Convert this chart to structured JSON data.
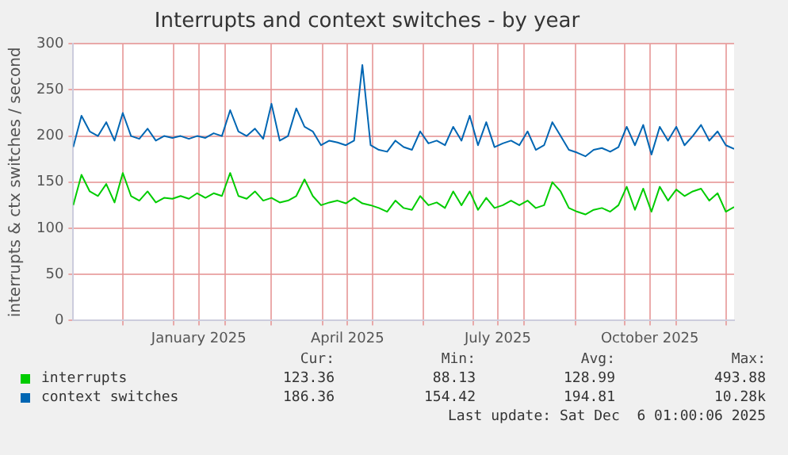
{
  "chart_data": {
    "type": "line",
    "title": "Interrupts and context switches - by year",
    "ylabel": "interrupts & ctx switches / second",
    "x": [
      "2024-11-01",
      "2024-11-06",
      "2024-11-11",
      "2024-11-16",
      "2024-11-21",
      "2024-11-26",
      "2024-12-01",
      "2024-12-06",
      "2024-12-11",
      "2024-12-16",
      "2024-12-21",
      "2024-12-26",
      "2024-12-31",
      "2025-01-05",
      "2025-01-10",
      "2025-01-15",
      "2025-01-20",
      "2025-01-25",
      "2025-01-30",
      "2025-02-04",
      "2025-02-09",
      "2025-02-14",
      "2025-02-19",
      "2025-02-24",
      "2025-03-01",
      "2025-03-06",
      "2025-03-11",
      "2025-03-16",
      "2025-03-21",
      "2025-03-26",
      "2025-03-31",
      "2025-04-05",
      "2025-04-10",
      "2025-04-15",
      "2025-04-20",
      "2025-04-25",
      "2025-04-30",
      "2025-05-05",
      "2025-05-10",
      "2025-05-15",
      "2025-05-20",
      "2025-05-25",
      "2025-05-30",
      "2025-06-04",
      "2025-06-09",
      "2025-06-14",
      "2025-06-19",
      "2025-06-24",
      "2025-06-29",
      "2025-07-04",
      "2025-07-09",
      "2025-07-14",
      "2025-07-19",
      "2025-07-24",
      "2025-07-29",
      "2025-08-03",
      "2025-08-08",
      "2025-08-13",
      "2025-08-18",
      "2025-08-23",
      "2025-08-28",
      "2025-09-02",
      "2025-09-07",
      "2025-09-12",
      "2025-09-17",
      "2025-09-22",
      "2025-09-27",
      "2025-10-02",
      "2025-10-07",
      "2025-10-12",
      "2025-10-17",
      "2025-10-22",
      "2025-10-27",
      "2025-11-01",
      "2025-11-06",
      "2025-11-11",
      "2025-11-16",
      "2025-11-21",
      "2025-11-26",
      "2025-12-01",
      "2025-12-06"
    ],
    "series": [
      {
        "name": "interrupts",
        "color": "#00cc00",
        "values": [
          125,
          158,
          140,
          135,
          148,
          128,
          160,
          135,
          130,
          140,
          128,
          133,
          132,
          135,
          132,
          138,
          133,
          138,
          135,
          160,
          135,
          132,
          140,
          130,
          133,
          128,
          130,
          135,
          153,
          135,
          125,
          128,
          130,
          127,
          133,
          127,
          125,
          122,
          118,
          130,
          122,
          120,
          135,
          125,
          128,
          122,
          140,
          125,
          140,
          120,
          133,
          122,
          125,
          130,
          125,
          130,
          122,
          125,
          150,
          140,
          122,
          118,
          115,
          120,
          122,
          118,
          125,
          145,
          120,
          143,
          118,
          145,
          130,
          142,
          135,
          140,
          143,
          130,
          138,
          118,
          123
        ]
      },
      {
        "name": "context switches",
        "color": "#0066b3",
        "values": [
          188,
          222,
          205,
          200,
          215,
          195,
          225,
          200,
          197,
          208,
          195,
          200,
          198,
          200,
          197,
          200,
          198,
          203,
          200,
          228,
          205,
          200,
          208,
          197,
          235,
          195,
          200,
          230,
          210,
          205,
          190,
          195,
          193,
          190,
          195,
          277,
          190,
          185,
          183,
          195,
          188,
          185,
          205,
          192,
          195,
          190,
          210,
          195,
          222,
          190,
          215,
          188,
          192,
          195,
          190,
          205,
          185,
          190,
          215,
          200,
          185,
          182,
          178,
          185,
          187,
          183,
          188,
          210,
          190,
          212,
          180,
          210,
          195,
          210,
          190,
          200,
          212,
          195,
          205,
          190,
          186
        ]
      }
    ],
    "xlim": [
      "2024-11-01",
      "2025-12-06"
    ],
    "xticks": [
      {
        "value": "2024-12-01",
        "label": null
      },
      {
        "value": "2025-01-01",
        "label": null
      },
      {
        "value": "2025-01-16",
        "label": "January 2025"
      },
      {
        "value": "2025-02-01",
        "label": null
      },
      {
        "value": "2025-03-01",
        "label": null
      },
      {
        "value": "2025-04-01",
        "label": null
      },
      {
        "value": "2025-04-16",
        "label": "April 2025"
      },
      {
        "value": "2025-05-01",
        "label": null
      },
      {
        "value": "2025-06-01",
        "label": null
      },
      {
        "value": "2025-07-01",
        "label": null
      },
      {
        "value": "2025-07-16",
        "label": "July 2025"
      },
      {
        "value": "2025-08-01",
        "label": null
      },
      {
        "value": "2025-09-01",
        "label": null
      },
      {
        "value": "2025-10-01",
        "label": null
      },
      {
        "value": "2025-10-16",
        "label": "October 2025"
      },
      {
        "value": "2025-11-01",
        "label": null
      },
      {
        "value": "2025-12-01",
        "label": null
      }
    ],
    "ylim": [
      0,
      300
    ],
    "yticks": [
      0,
      50,
      100,
      150,
      200,
      250,
      300
    ],
    "grid": true,
    "legend": "bottom",
    "line_style": "solid",
    "annotations": [
      "Cur:",
      "Min:",
      "Avg:",
      "Max:",
      "123.36",
      "88.13",
      "128.99",
      "493.88",
      "186.36",
      "154.42",
      "194.81",
      "10.28k",
      "Last update: Sat Dec  6 01:00:06 2025"
    ]
  }
}
